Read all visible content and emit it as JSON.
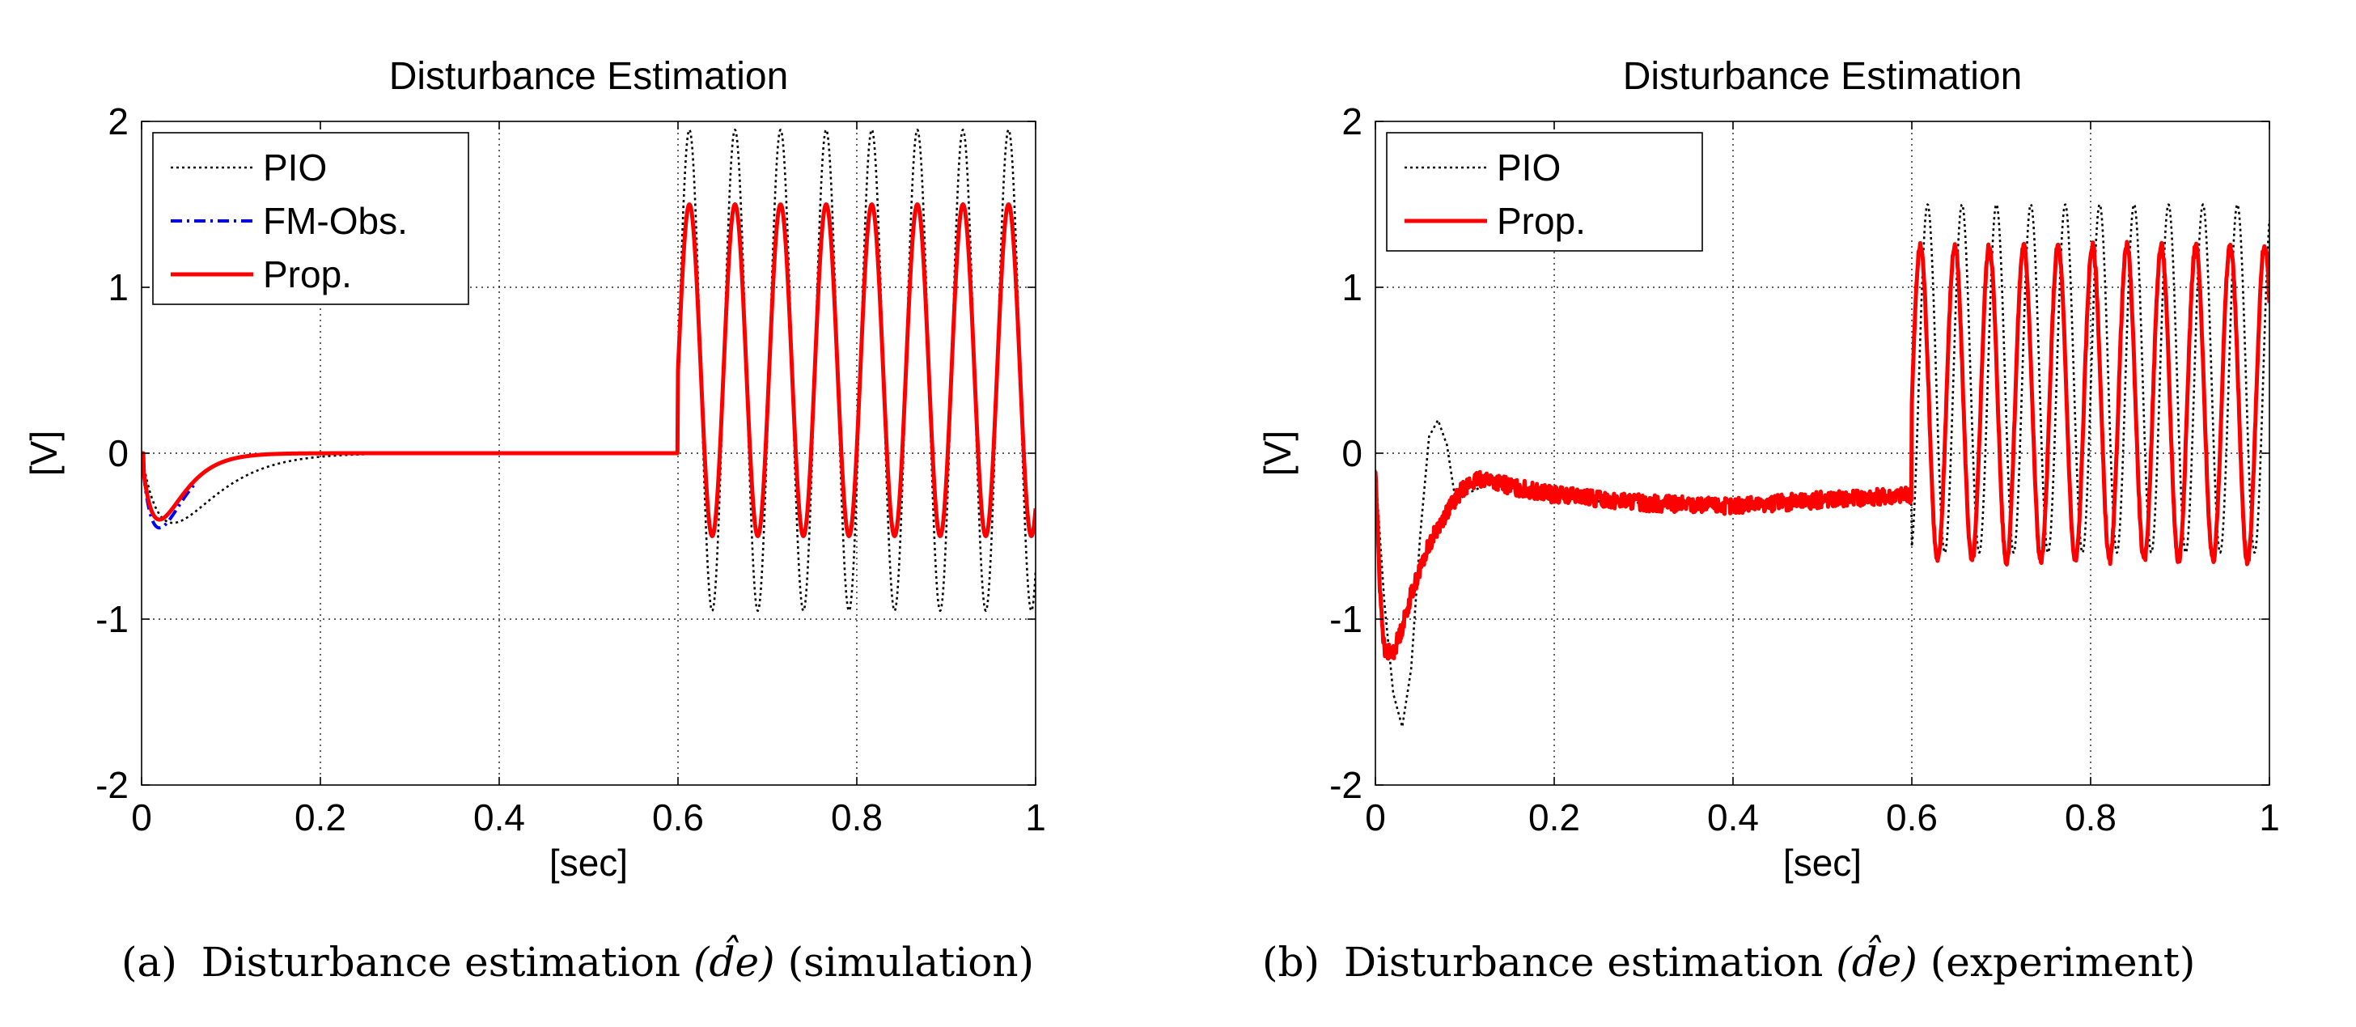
{
  "figure": {
    "captions": [
      {
        "label": "(a)",
        "text": "Disturbance estimation",
        "math": "(d̂e)",
        "suffix": "(simulation)"
      },
      {
        "label": "(b)",
        "text": "Disturbance estimation",
        "math": "(d̂e)",
        "suffix": "(experiment)"
      }
    ]
  },
  "chart_data": [
    {
      "id": "sim",
      "type": "line",
      "title": "Disturbance Estimation",
      "xlabel": "[sec]",
      "ylabel": "[V]",
      "xlim": [
        0,
        1
      ],
      "ylim": [
        -2,
        2
      ],
      "xticks": [
        "0",
        "0.2",
        "0.4",
        "0.6",
        "0.8",
        "1"
      ],
      "yticks": [
        "-2",
        "-1",
        "0",
        "1",
        "2"
      ],
      "grid": true,
      "legend": "top-left",
      "series": [
        {
          "name": "PIO",
          "color": "#000000",
          "style": "dotted",
          "transient": {
            "min": -0.42,
            "tau": 0.035
          },
          "step_at": 0.6,
          "offset": 0.5,
          "amplitude": 1.45,
          "period": 0.051,
          "phase": 0.0
        },
        {
          "name": "FM-Obs.",
          "color": "#0000ff",
          "style": "dashdot",
          "transient": {
            "min": -0.45,
            "tau": 0.02
          },
          "transient_end": 0.06
        },
        {
          "name": "Prop.",
          "color": "#ff0000",
          "style": "solid",
          "transient": {
            "min": -0.4,
            "tau": 0.02
          },
          "step_at": 0.6,
          "offset": 0.5,
          "amplitude": 1.0,
          "period": 0.051,
          "phase": 0.0
        }
      ]
    },
    {
      "id": "exp",
      "type": "line",
      "title": "Disturbance Estimation",
      "xlabel": "[sec]",
      "ylabel": "[V]",
      "xlim": [
        0,
        1
      ],
      "ylim": [
        -2,
        2
      ],
      "xticks": [
        "0",
        "0.2",
        "0.4",
        "0.6",
        "0.8",
        "1"
      ],
      "yticks": [
        "-2",
        "-1",
        "0",
        "1",
        "2"
      ],
      "grid": true,
      "legend": "top-left",
      "series": [
        {
          "name": "PIO",
          "color": "#000000",
          "style": "dotted",
          "points": [
            [
              0,
              -0.1
            ],
            [
              0.01,
              -0.9
            ],
            [
              0.02,
              -1.45
            ],
            [
              0.03,
              -1.65
            ],
            [
              0.04,
              -1.3
            ],
            [
              0.05,
              -0.5
            ],
            [
              0.06,
              0.1
            ],
            [
              0.07,
              0.2
            ],
            [
              0.08,
              0.05
            ],
            [
              0.09,
              -0.3
            ],
            [
              0.1,
              -0.25
            ],
            [
              0.12,
              -0.2
            ],
            [
              0.14,
              -0.15
            ],
            [
              0.16,
              -0.25
            ],
            [
              0.2,
              -0.28
            ],
            [
              0.3,
              -0.3
            ],
            [
              0.4,
              -0.3
            ],
            [
              0.5,
              -0.28
            ],
            [
              0.6,
              -0.25
            ]
          ],
          "step_at": 0.6,
          "offset": 0.45,
          "amplitude": 1.05,
          "period": 0.0385,
          "phase": 0.008
        },
        {
          "name": "Prop.",
          "color": "#ff0000",
          "style": "solid",
          "points": [
            [
              0,
              -0.1
            ],
            [
              0.005,
              -0.8
            ],
            [
              0.01,
              -1.2
            ],
            [
              0.02,
              -1.2
            ],
            [
              0.03,
              -1.05
            ],
            [
              0.04,
              -0.85
            ],
            [
              0.06,
              -0.55
            ],
            [
              0.08,
              -0.35
            ],
            [
              0.1,
              -0.2
            ],
            [
              0.12,
              -0.15
            ],
            [
              0.15,
              -0.2
            ],
            [
              0.2,
              -0.25
            ],
            [
              0.3,
              -0.3
            ],
            [
              0.4,
              -0.32
            ],
            [
              0.5,
              -0.28
            ],
            [
              0.6,
              -0.25
            ]
          ],
          "noise": 0.05,
          "step_at": 0.6,
          "offset": 0.3,
          "amplitude": 0.95,
          "period": 0.0385,
          "phase": 0.0
        }
      ]
    }
  ]
}
